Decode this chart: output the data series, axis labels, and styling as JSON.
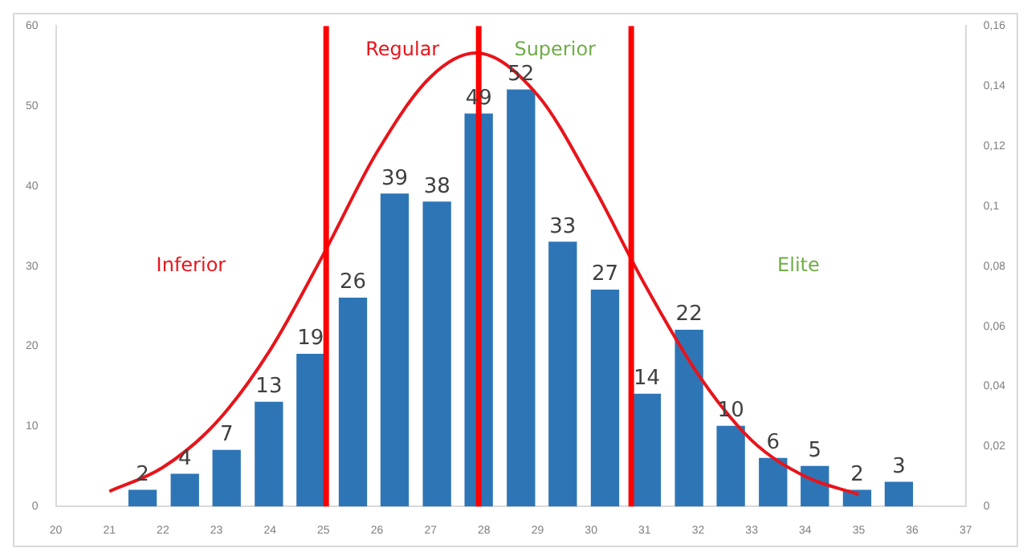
{
  "chart_data": {
    "type": "bar",
    "series": [
      {
        "color": "#2e75b6",
        "x": [
          21.62,
          22.41,
          23.19,
          23.98,
          24.76,
          25.55,
          26.33,
          27.12,
          27.9,
          28.69,
          29.47,
          30.26,
          31.04,
          31.83,
          32.61,
          33.4,
          34.18,
          34.97,
          35.75
        ],
        "values": [
          2,
          4,
          7,
          13,
          19,
          26,
          39,
          38,
          49,
          52,
          33,
          27,
          14,
          22,
          10,
          6,
          5,
          2,
          3
        ],
        "value_labels": [
          "2",
          "4",
          "7",
          "13",
          "19",
          "26",
          "39",
          "38",
          "49",
          "52",
          "33",
          "27",
          "14",
          "22",
          "10",
          "6",
          "5",
          "2",
          "3"
        ]
      },
      {
        "type": "line",
        "axis": "y2",
        "color": "#e8141b",
        "x": [
          21,
          22,
          23,
          24,
          25,
          26,
          27,
          27.85,
          29,
          30,
          31,
          32,
          33,
          34,
          35
        ],
        "values": [
          0.005,
          0.013,
          0.028,
          0.052,
          0.084,
          0.118,
          0.143,
          0.151,
          0.137,
          0.108,
          0.074,
          0.044,
          0.022,
          0.01,
          0.004
        ]
      }
    ],
    "xlim": [
      20,
      37
    ],
    "xticks": [
      20,
      21,
      22,
      23,
      24,
      25,
      26,
      27,
      28,
      29,
      30,
      31,
      32,
      33,
      34,
      35,
      36,
      37
    ],
    "ylim": [
      0,
      60
    ],
    "yticks": [
      0,
      10,
      20,
      30,
      40,
      50,
      60
    ],
    "y2lim": [
      0,
      0.16
    ],
    "y2ticks": [
      0,
      {
        "value": 0.02,
        "label": "0,02"
      },
      {
        "value": 0.04,
        "label": "0,04"
      },
      {
        "value": 0.06,
        "label": "0,06"
      },
      {
        "value": 0.08,
        "label": "0,08"
      },
      {
        "value": 0.1,
        "label": "0,1"
      },
      {
        "value": 0.12,
        "label": "0,12"
      },
      {
        "value": 0.14,
        "label": "0,14"
      },
      {
        "value": 0.16,
        "label": "0,16"
      }
    ],
    "ref_lines": [
      {
        "axis": "x",
        "value": 25.05,
        "color": "#ff0000"
      },
      {
        "axis": "x",
        "value": 27.9,
        "color": "#ff0000"
      },
      {
        "axis": "x",
        "value": 30.75,
        "color": "#ff0000"
      }
    ],
    "annotations": [
      "Regular",
      "Superior",
      "Inferior",
      "Elite"
    ],
    "grid": false,
    "legend": false,
    "marker": "none",
    "line_style": "solid"
  }
}
